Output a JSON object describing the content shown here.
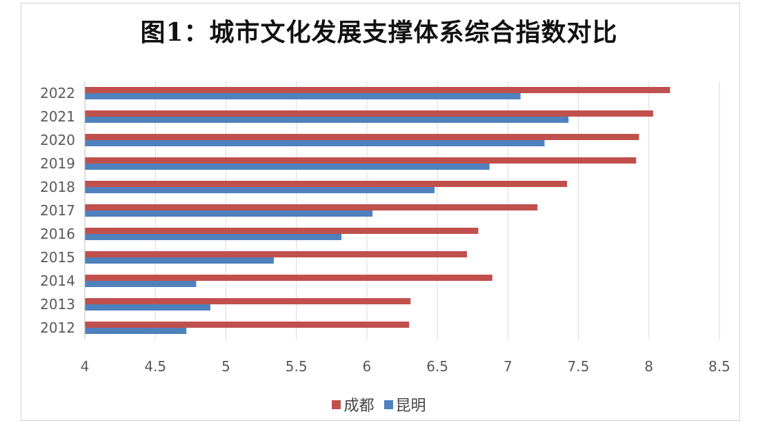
{
  "title": "图1：城市文化发展支撑体系综合指数对比",
  "colors": {
    "chengdu": "#c0504d",
    "kunming": "#4f81bd",
    "grid": "#d9d9d9",
    "axis_text": "#595959"
  },
  "chart_data": {
    "type": "bar",
    "orientation": "horizontal",
    "title": "图1：城市文化发展支撑体系综合指数对比",
    "categories": [
      "2012",
      "2013",
      "2014",
      "2015",
      "2016",
      "2017",
      "2018",
      "2019",
      "2020",
      "2021",
      "2022"
    ],
    "series": [
      {
        "name": "成都",
        "color": "#c0504d",
        "values": [
          6.3,
          6.31,
          6.89,
          6.71,
          6.79,
          7.21,
          7.42,
          7.91,
          7.93,
          8.03,
          8.15
        ]
      },
      {
        "name": "昆明",
        "color": "#4f81bd",
        "values": [
          4.72,
          4.89,
          4.79,
          5.34,
          5.82,
          6.04,
          6.48,
          6.87,
          7.26,
          7.43,
          7.09
        ]
      }
    ],
    "xlim": [
      4,
      8.5
    ],
    "x_ticks": [
      "4",
      "4.5",
      "5",
      "5.5",
      "6",
      "6.5",
      "7",
      "7.5",
      "8",
      "8.5"
    ],
    "grid": true,
    "legend_position": "bottom"
  }
}
